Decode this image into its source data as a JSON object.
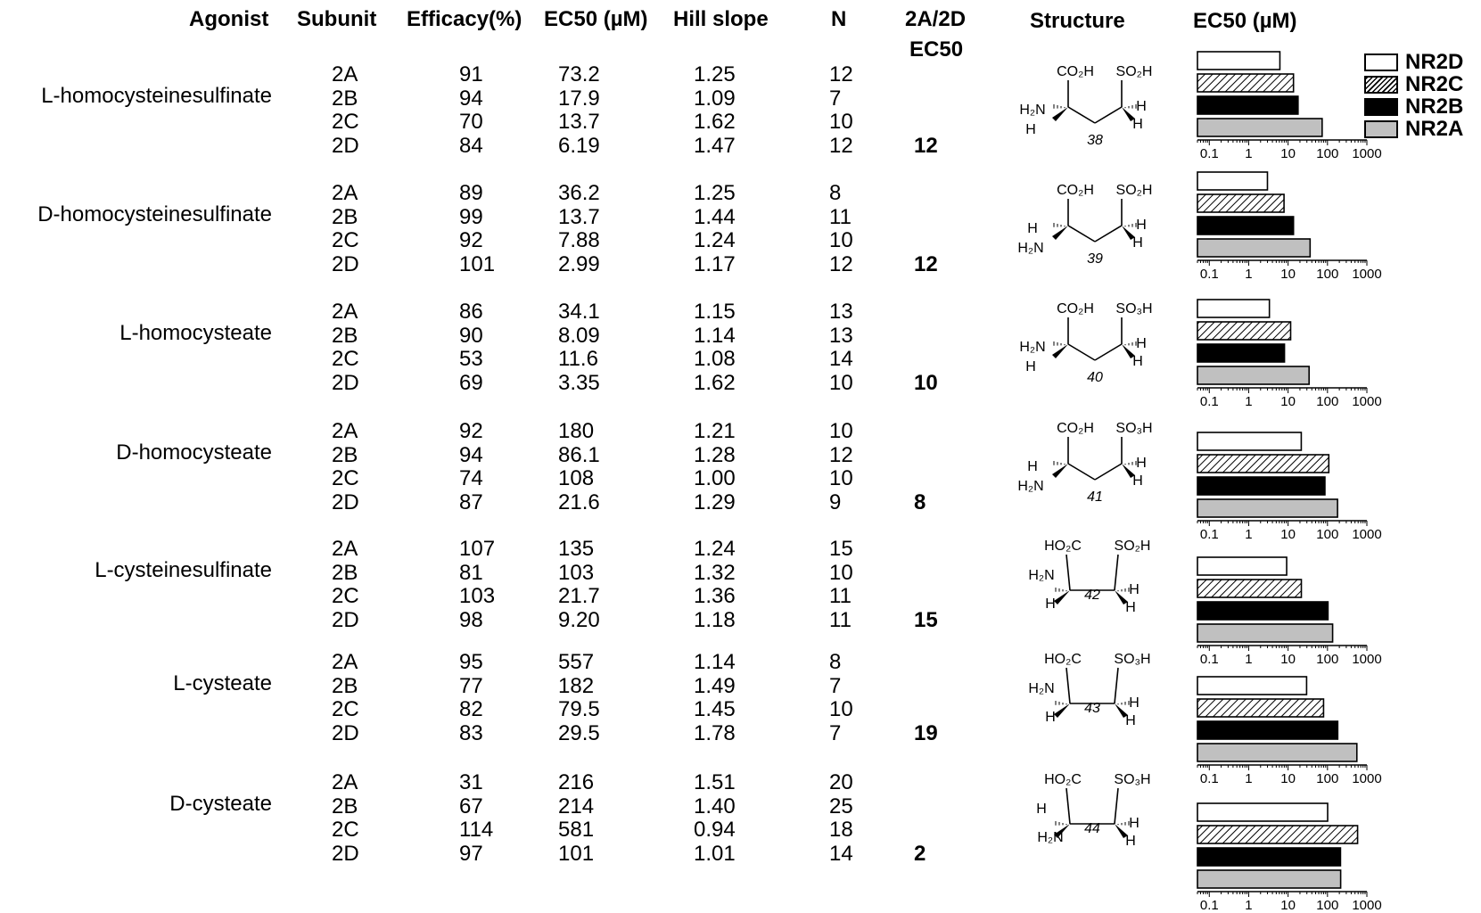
{
  "headers": {
    "agonist": "Agonist",
    "subunit": "Subunit",
    "efficacy": "Efficacy(%)",
    "ec50": "EC50 (µM)",
    "hill": "Hill slope",
    "n": "N",
    "ratio_line1": "2A/2D",
    "ratio_line2": "EC50",
    "structure": "Structure",
    "chart": "EC50 (µM)"
  },
  "legend": [
    {
      "label": "NR2D",
      "fill": "#ffffff"
    },
    {
      "label": "NR2C",
      "fill": "hatch"
    },
    {
      "label": "NR2B",
      "fill": "#000000"
    },
    {
      "label": "NR2A",
      "fill": "#c0c0c0"
    }
  ],
  "agonists": [
    {
      "name": "L-homocysteinesulfinate",
      "ratio": "12",
      "compound": "38",
      "rows": [
        [
          "2A",
          "91",
          "73.2",
          "1.25",
          "12"
        ],
        [
          "2B",
          "94",
          "17.9",
          "1.09",
          "7"
        ],
        [
          "2C",
          "70",
          "13.7",
          "1.62",
          "10"
        ],
        [
          "2D",
          "84",
          "6.19",
          "1.47",
          "12"
        ]
      ]
    },
    {
      "name": "D-homocysteinesulfinate",
      "ratio": "12",
      "compound": "39",
      "rows": [
        [
          "2A",
          "89",
          "36.2",
          "1.25",
          "8"
        ],
        [
          "2B",
          "99",
          "13.7",
          "1.44",
          "11"
        ],
        [
          "2C",
          "92",
          "7.88",
          "1.24",
          "10"
        ],
        [
          "2D",
          "101",
          "2.99",
          "1.17",
          "12"
        ]
      ]
    },
    {
      "name": "L-homocysteate",
      "ratio": "10",
      "compound": "40",
      "rows": [
        [
          "2A",
          "86",
          "34.1",
          "1.15",
          "13"
        ],
        [
          "2B",
          "90",
          "8.09",
          "1.14",
          "13"
        ],
        [
          "2C",
          "53",
          "11.6",
          "1.08",
          "14"
        ],
        [
          "2D",
          "69",
          "3.35",
          "1.62",
          "10"
        ]
      ]
    },
    {
      "name": "D-homocysteate",
      "ratio": "8",
      "compound": "41",
      "rows": [
        [
          "2A",
          "92",
          "180",
          "1.21",
          "10"
        ],
        [
          "2B",
          "94",
          "86.1",
          "1.28",
          "12"
        ],
        [
          "2C",
          "74",
          "108",
          "1.00",
          "10"
        ],
        [
          "2D",
          "87",
          "21.6",
          "1.29",
          "9"
        ]
      ]
    },
    {
      "name": "L-cysteinesulfinate",
      "ratio": "15",
      "compound": "42",
      "rows": [
        [
          "2A",
          "107",
          "135",
          "1.24",
          "15"
        ],
        [
          "2B",
          "81",
          "103",
          "1.32",
          "10"
        ],
        [
          "2C",
          "103",
          "21.7",
          "1.36",
          "11"
        ],
        [
          "2D",
          "98",
          "9.20",
          "1.18",
          "11"
        ]
      ]
    },
    {
      "name": "L-cysteate",
      "ratio": "19",
      "compound": "43",
      "rows": [
        [
          "2A",
          "95",
          "557",
          "1.14",
          "8"
        ],
        [
          "2B",
          "77",
          "182",
          "1.49",
          "7"
        ],
        [
          "2C",
          "82",
          "79.5",
          "1.45",
          "10"
        ],
        [
          "2D",
          "83",
          "29.5",
          "1.78",
          "7"
        ]
      ]
    },
    {
      "name": "D-cysteate",
      "ratio": "2",
      "compound": "44",
      "rows": [
        [
          "2A",
          "31",
          "216",
          "1.51",
          "20"
        ],
        [
          "2B",
          "67",
          "214",
          "1.40",
          "25"
        ],
        [
          "2C",
          "114",
          "581",
          "0.94",
          "18"
        ],
        [
          "2D",
          "97",
          "101",
          "1.01",
          "14"
        ]
      ]
    }
  ],
  "chart_data": {
    "type": "bar",
    "orientation": "horizontal",
    "xscale": "log",
    "xlim": [
      0.05,
      1000
    ],
    "xticks": [
      "0.1",
      "1",
      "10",
      "100",
      "1000"
    ],
    "categories": [
      "L-homocysteinesulfinate",
      "D-homocysteinesulfinate",
      "L-homocysteate",
      "D-homocysteate",
      "L-cysteinesulfinate",
      "L-cysteate",
      "D-cysteate"
    ],
    "series": [
      {
        "name": "NR2D",
        "values": [
          6.19,
          2.99,
          3.35,
          21.6,
          9.2,
          29.5,
          101
        ]
      },
      {
        "name": "NR2C",
        "values": [
          13.7,
          7.88,
          11.6,
          108,
          21.7,
          79.5,
          581
        ]
      },
      {
        "name": "NR2B",
        "values": [
          17.9,
          13.7,
          8.09,
          86.1,
          103,
          182,
          214
        ]
      },
      {
        "name": "NR2A",
        "values": [
          73.2,
          36.2,
          34.1,
          180,
          135,
          557,
          216
        ]
      }
    ]
  },
  "structures": [
    {
      "acid_top": "CO₂H",
      "sulf_top": "SO₂H",
      "left_upper": "H₂N",
      "left_lower": "H",
      "right_upper": "H",
      "right_lower": "H"
    },
    {
      "acid_top": "CO₂H",
      "sulf_top": "SO₂H",
      "left_upper": "H",
      "left_lower": "H₂N",
      "right_upper": "H",
      "right_lower": "H"
    },
    {
      "acid_top": "CO₂H",
      "sulf_top": "SO₃H",
      "left_upper": "H₂N",
      "left_lower": "H",
      "right_upper": "H",
      "right_lower": "H"
    },
    {
      "acid_top": "CO₂H",
      "sulf_top": "SO₃H",
      "left_upper": "H",
      "left_lower": "H₂N",
      "right_upper": "H",
      "right_lower": "H"
    },
    {
      "acid_top": "HO₂C",
      "sulf_top": "SO₂H",
      "left_upper": "H₂N",
      "left_lower": "H",
      "right_upper": "H",
      "right_lower": "H"
    },
    {
      "acid_top": "HO₂C",
      "sulf_top": "SO₃H",
      "left_upper": "H₂N",
      "left_lower": "H",
      "right_upper": "H",
      "right_lower": "H"
    },
    {
      "acid_top": "HO₂C",
      "sulf_top": "SO₃H",
      "left_upper": "H",
      "left_lower": "H₂N",
      "right_upper": "H",
      "right_lower": "H"
    }
  ]
}
